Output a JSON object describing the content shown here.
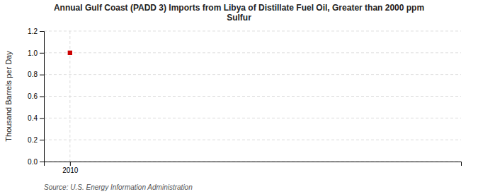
{
  "chart_data": {
    "type": "scatter",
    "title": "Annual Gulf Coast (PADD 3) Imports from Libya of Distillate Fuel Oil, Greater than 2000 ppm\nSulfur",
    "ylabel": "Thousand Barrels per Day",
    "source": "Source: U.S. Energy Information Administration",
    "x": [
      2010
    ],
    "values": [
      1.0
    ],
    "color": "#cc0000",
    "marker": "square",
    "xlim": [
      2009.3,
      2020.5
    ],
    "xticks": [
      2010
    ],
    "ylim": [
      0.0,
      1.2
    ],
    "yticks": [
      {
        "value": 0.0,
        "label": "0.0"
      },
      {
        "value": 0.2,
        "label": "0.2"
      },
      {
        "value": 0.4,
        "label": "0.4"
      },
      {
        "value": 0.6,
        "label": "0.6"
      },
      {
        "value": 0.8,
        "label": "0.8"
      },
      {
        "value": 1.0,
        "label": "1.0"
      },
      {
        "value": 1.2,
        "label": "1.2"
      }
    ],
    "grid": true
  }
}
